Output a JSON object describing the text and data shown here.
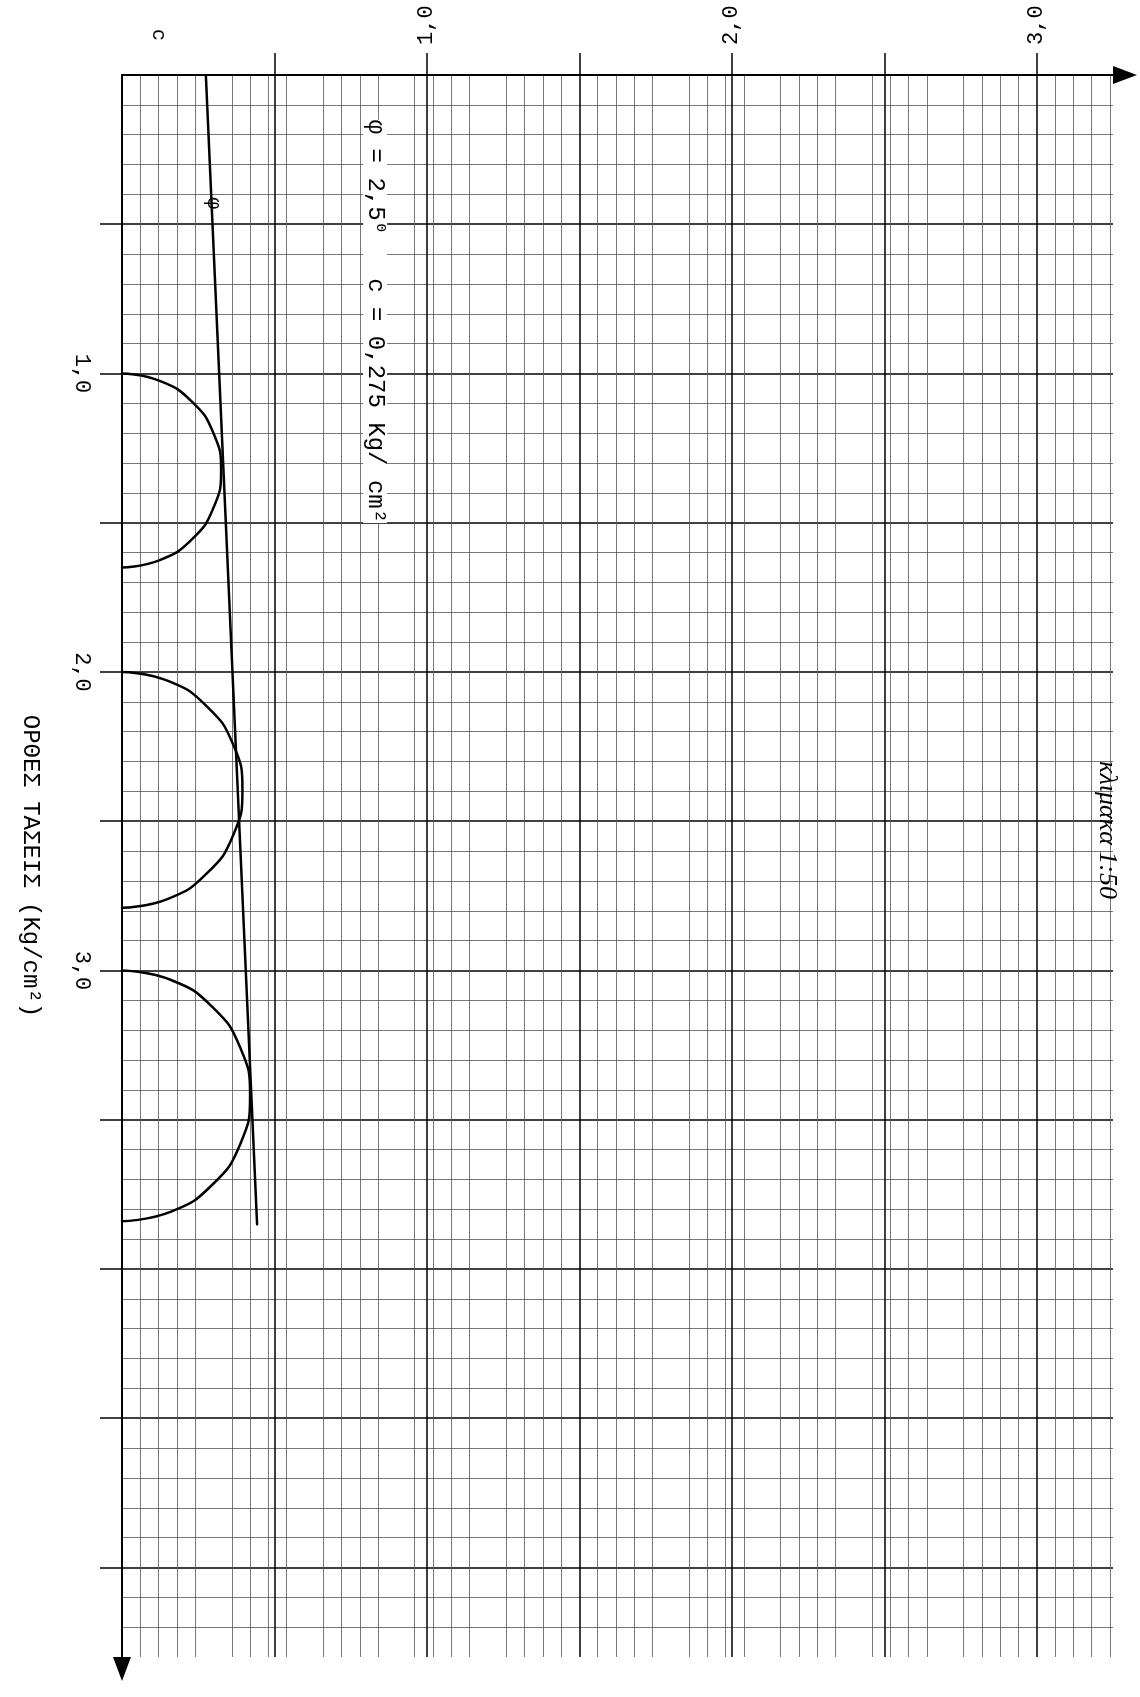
{
  "chart_data": {
    "type": "line",
    "title": "κλιμακα 1:50",
    "ylabel": "ΟΡΘΕΣ ΤΑΣΕΙΣ (Kg/cm²)",
    "annotations": [
      "φ = 2,5⁰   c = 0,275 Kg/ cm²",
      "φ",
      "c"
    ],
    "xlim": [
      0,
      3.25
    ],
    "ylim": [
      5.3,
      0
    ],
    "xticks": [
      {
        "value": 0.5,
        "label": null
      },
      {
        "value": 1,
        "label": "1,0"
      },
      {
        "value": 1.5,
        "label": null
      },
      {
        "value": 2,
        "label": "2,0"
      },
      {
        "value": 2.5,
        "label": null
      },
      {
        "value": 3,
        "label": "3,0"
      }
    ],
    "yticks": [
      {
        "value": 0.5,
        "label": null
      },
      {
        "value": 1,
        "label": "1,0"
      },
      {
        "value": 1.5,
        "label": null
      },
      {
        "value": 2,
        "label": "2,0"
      },
      {
        "value": 2.5,
        "label": null
      },
      {
        "value": 3,
        "label": "3,0"
      },
      {
        "value": 3.5,
        "label": null
      },
      {
        "value": 4,
        "label": null
      },
      {
        "value": 4.5,
        "label": null
      },
      {
        "value": 5,
        "label": null
      }
    ],
    "grid": true,
    "marker": "none",
    "line_style": "solid",
    "series": [
      {
        "color": "#000000",
        "x": [
          0.275,
          0.443
        ],
        "values": [
          0,
          3.85
        ]
      },
      {
        "color": "#000000",
        "x": [
          0,
          0.124,
          0.23,
          0.3,
          0.325,
          0.3,
          0.23,
          0.124,
          0
        ],
        "values": [
          1.0,
          1.025,
          1.095,
          1.2,
          1.325,
          1.45,
          1.555,
          1.625,
          1.65
        ]
      },
      {
        "color": "#000000",
        "x": [
          0,
          0.151,
          0.279,
          0.365,
          0.395,
          0.365,
          0.279,
          0.151,
          0
        ],
        "values": [
          2.0,
          2.03,
          2.116,
          2.244,
          2.395,
          2.546,
          2.674,
          2.76,
          2.79
        ]
      },
      {
        "color": "#000000",
        "x": [
          0,
          0.161,
          0.297,
          0.388,
          0.42,
          0.388,
          0.297,
          0.161,
          0
        ],
        "values": [
          3.0,
          3.032,
          3.123,
          3.259,
          3.42,
          3.581,
          3.717,
          3.808,
          3.84
        ]
      }
    ]
  }
}
